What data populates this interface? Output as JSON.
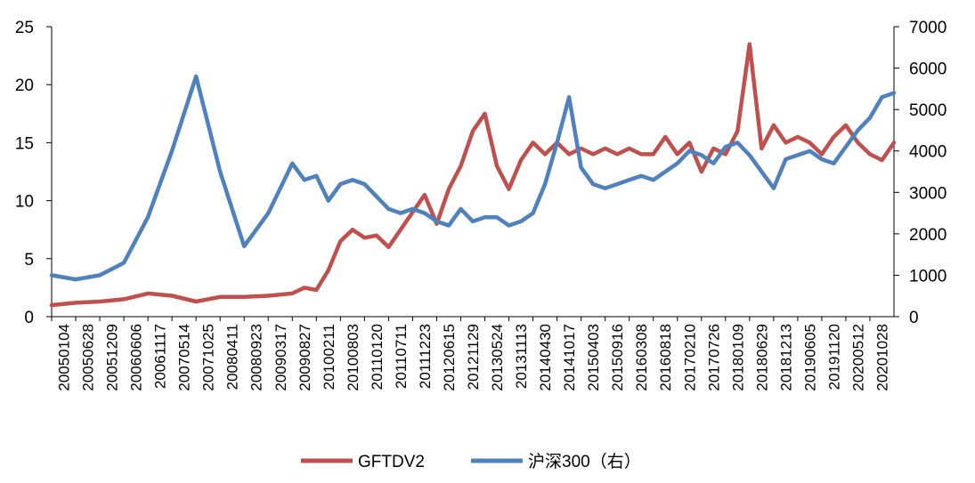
{
  "chart_data": {
    "type": "line",
    "title": "",
    "xlabel": "",
    "ylabel": "",
    "ylim": [
      0,
      25
    ],
    "y2lim": [
      0,
      7000
    ],
    "yticks": [
      0,
      5,
      10,
      15,
      20,
      25
    ],
    "y2ticks": [
      0,
      1000,
      2000,
      3000,
      4000,
      5000,
      6000,
      7000
    ],
    "legend_position": "bottom",
    "grid": false,
    "x_tick_labels": [
      "20050104",
      "20050628",
      "20051209",
      "20060606",
      "20061117",
      "20070514",
      "20071025",
      "20080411",
      "20080923",
      "20090317",
      "20090827",
      "20100211",
      "20100803",
      "20110120",
      "20110711",
      "20111223",
      "20120615",
      "20121129",
      "20130524",
      "20131113",
      "20140430",
      "20141017",
      "20150403",
      "20150916",
      "20160308",
      "20160818",
      "20170210",
      "20170726",
      "20180109",
      "20180629",
      "20181213",
      "20190605",
      "20191120",
      "20200512",
      "20201028"
    ],
    "series": [
      {
        "name": "GFTDV2",
        "axis": "left",
        "color": "#C0504D",
        "x": [
          0,
          1,
          2,
          3,
          4,
          5,
          6,
          7,
          8,
          9,
          10,
          10.5,
          11,
          11.5,
          12,
          12.5,
          13,
          13.5,
          14,
          14.5,
          15,
          15.5,
          16,
          16.5,
          17,
          17.5,
          18,
          18.5,
          19,
          19.5,
          20,
          20.5,
          21,
          21.5,
          22,
          22.5,
          23,
          23.5,
          24,
          24.5,
          25,
          25.5,
          26,
          26.5,
          27,
          27.5,
          28,
          28.5,
          29,
          29.5,
          30,
          30.5,
          31,
          31.5,
          32,
          32.5,
          33,
          33.5,
          34,
          34.5,
          35
        ],
        "values": [
          1.0,
          1.2,
          1.3,
          1.5,
          2.0,
          1.8,
          1.3,
          1.7,
          1.7,
          1.8,
          2.0,
          2.5,
          2.3,
          4.0,
          6.5,
          7.5,
          6.8,
          7.0,
          6.0,
          7.5,
          9.0,
          10.5,
          8.0,
          11.0,
          13.0,
          16.0,
          17.5,
          13.0,
          11.0,
          13.5,
          15.0,
          14.0,
          15.0,
          14.0,
          14.5,
          14.0,
          14.5,
          14.0,
          14.5,
          14.0,
          14.0,
          15.5,
          14.0,
          15.0,
          12.5,
          14.5,
          14.0,
          16.0,
          23.5,
          14.5,
          16.5,
          15.0,
          15.5,
          15.0,
          14.0,
          15.5,
          16.5,
          15.0,
          14.0,
          13.5,
          15.0
        ]
      },
      {
        "name": "沪深300（右）",
        "axis": "right",
        "color": "#4F81BD",
        "x": [
          0,
          1,
          2,
          3,
          4,
          5,
          6,
          7,
          8,
          9,
          10,
          10.5,
          11,
          11.5,
          12,
          12.5,
          13,
          13.5,
          14,
          14.5,
          15,
          15.5,
          16,
          16.5,
          17,
          17.5,
          18,
          18.5,
          19,
          19.5,
          20,
          20.5,
          21,
          21.5,
          22,
          22.5,
          23,
          23.5,
          24,
          24.5,
          25,
          25.5,
          26,
          26.5,
          27,
          27.5,
          28,
          28.5,
          29,
          29.5,
          30,
          30.5,
          31,
          31.5,
          32,
          32.5,
          33,
          33.5,
          34,
          34.5,
          35
        ],
        "values": [
          1000,
          900,
          1000,
          1300,
          2400,
          4000,
          5800,
          3500,
          1700,
          2500,
          3700,
          3300,
          3400,
          2800,
          3200,
          3300,
          3200,
          2900,
          2600,
          2500,
          2600,
          2500,
          2300,
          2200,
          2600,
          2300,
          2400,
          2400,
          2200,
          2300,
          2500,
          3200,
          4200,
          5300,
          3600,
          3200,
          3100,
          3200,
          3300,
          3400,
          3300,
          3500,
          3700,
          4000,
          3900,
          3700,
          4100,
          4200,
          3900,
          3500,
          3100,
          3800,
          3900,
          4000,
          3800,
          3700,
          4100,
          4500,
          4800,
          5300,
          5400
        ]
      }
    ]
  }
}
